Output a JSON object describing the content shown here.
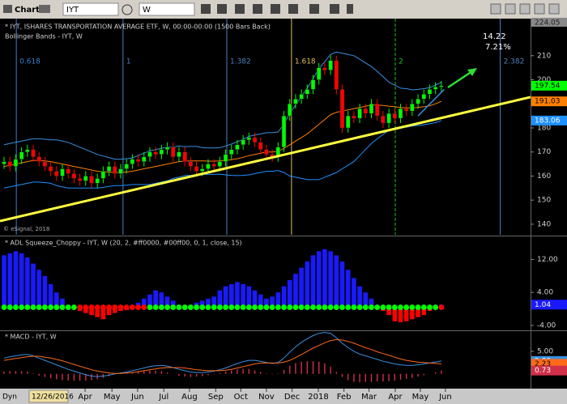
{
  "toolbar": {
    "label": "Chart",
    "symbol": "IYT",
    "interval": "W"
  },
  "status": {
    "mode": "Dyn",
    "date": "12/26/2016"
  },
  "chart_data": [
    {
      "type": "candlestick",
      "title": "* IYT, ISHARES TRANSPORTATION AVERAGE ETF, W, 00:00-00:00 (1500 Bars Back)",
      "subtitle": "Bollinger Bands - IYT, W",
      "copyright": "© eSignal, 2018",
      "annotation": {
        "change": "14.22",
        "percent": "7.21%"
      },
      "xlim": [
        -0.7,
        90.3
      ],
      "ylim": [
        135.6,
        224.05
      ],
      "yticks": [
        140,
        150,
        160,
        170,
        180,
        190,
        200,
        210
      ],
      "up_color": "#00ff00",
      "down_color": "#ff0000",
      "open": [
        165,
        166,
        164,
        167,
        170,
        171,
        168,
        166,
        164,
        162,
        160,
        163,
        161,
        159,
        158,
        160,
        157,
        159,
        162,
        164,
        161,
        163,
        165,
        167,
        166,
        168,
        170,
        169,
        171,
        172,
        168,
        170,
        166,
        164,
        162,
        163,
        165,
        164,
        166,
        169,
        171,
        173,
        175,
        176,
        174,
        171,
        169,
        168,
        172,
        185,
        190,
        192,
        194,
        196,
        200,
        205,
        204,
        208,
        196,
        180,
        185,
        184,
        188,
        186,
        190,
        185,
        182,
        186,
        184,
        188,
        187,
        190,
        192,
        194,
        196,
        197
      ],
      "high": [
        168,
        168,
        169,
        172,
        173,
        173,
        170,
        168,
        166,
        164,
        165,
        165,
        163,
        161,
        162,
        162,
        161,
        164,
        166,
        166,
        165,
        167,
        169,
        169,
        170,
        172,
        172,
        173,
        174,
        174,
        172,
        172,
        168,
        166,
        165,
        167,
        167,
        168,
        171,
        173,
        175,
        177,
        178,
        178,
        176,
        173,
        171,
        174,
        187,
        192,
        194,
        196,
        198,
        202,
        207,
        207,
        210,
        210,
        198,
        187,
        187,
        190,
        190,
        192,
        192,
        187,
        188,
        188,
        190,
        190,
        192,
        194,
        196,
        198,
        199,
        199.5
      ],
      "low": [
        163,
        162,
        162,
        165,
        168,
        166,
        164,
        162,
        160,
        158,
        158,
        159,
        157,
        156,
        156,
        155,
        155,
        157,
        160,
        159,
        159,
        161,
        163,
        164,
        164,
        166,
        167,
        167,
        169,
        166,
        166,
        164,
        162,
        160,
        160,
        161,
        162,
        162,
        164,
        167,
        169,
        171,
        173,
        172,
        169,
        167,
        166,
        166,
        170,
        183,
        188,
        190,
        192,
        194,
        198,
        202,
        202,
        194,
        178,
        178,
        182,
        182,
        184,
        184,
        183,
        180,
        180,
        182,
        182,
        185,
        185,
        188,
        190,
        192,
        194,
        195
      ],
      "close": [
        166,
        164,
        167,
        170,
        171,
        168,
        166,
        164,
        162,
        160,
        163,
        161,
        159,
        158,
        160,
        157,
        159,
        162,
        164,
        161,
        163,
        165,
        167,
        166,
        168,
        170,
        169,
        171,
        172,
        168,
        170,
        166,
        164,
        162,
        163,
        165,
        164,
        166,
        169,
        171,
        173,
        175,
        176,
        174,
        171,
        169,
        168,
        172,
        185,
        190,
        192,
        194,
        196,
        200,
        205,
        204,
        208,
        196,
        180,
        185,
        184,
        188,
        186,
        190,
        185,
        182,
        186,
        184,
        188,
        187,
        190,
        192,
        194,
        196,
        197,
        197.54
      ],
      "bands": [
        {
          "color": "#3a8fe0",
          "values": [
            173,
            173.5,
            174,
            174.5,
            175,
            175.5,
            175.5,
            175.3,
            175,
            175,
            174.5,
            174,
            173,
            172,
            171,
            170,
            169,
            168.3,
            167.7,
            167,
            167,
            167.2,
            167.5,
            168.5,
            169.5,
            170.5,
            171,
            171.5,
            172,
            172,
            172.5,
            172.2,
            172.3,
            172.3,
            171.8,
            171.7,
            171.7,
            171.8,
            172.5,
            173.3,
            174.2,
            175.3,
            176.5,
            177,
            177.5,
            178,
            178,
            178.3,
            181.5,
            186,
            189.5,
            193,
            196.5,
            200.5,
            204.5,
            207.5,
            210.5,
            211.5,
            211,
            210.5,
            210,
            208.5,
            207,
            205.5,
            203.5,
            201.3,
            199,
            197.8,
            196.5,
            196.3,
            195.8,
            196,
            196.3,
            196.7,
            197.8,
            199
          ]
        },
        {
          "color": "#ff8000",
          "values": [
            164,
            164.5,
            165,
            165.5,
            166,
            166.5,
            166.5,
            166.3,
            166,
            165.5,
            165,
            164.5,
            164,
            163.5,
            163,
            162.5,
            162,
            161.8,
            161.7,
            161.5,
            161.5,
            161.7,
            162,
            162.5,
            163,
            163.5,
            164,
            164.5,
            165,
            165.5,
            166,
            166.2,
            166.3,
            166.3,
            166.3,
            166.2,
            166.2,
            166.3,
            166.5,
            166.8,
            167.2,
            167.8,
            168.5,
            169,
            169.5,
            170,
            170,
            170.3,
            171.5,
            173,
            174.5,
            176,
            177.5,
            179.5,
            181.5,
            183.5,
            185.5,
            186.5,
            187,
            187.5,
            188,
            188.5,
            189,
            189.5,
            189.5,
            189.3,
            189,
            188.8,
            188.5,
            188.3,
            188.3,
            188.5,
            188.8,
            189.2,
            190,
            191.03
          ]
        },
        {
          "color": "#1e90ff",
          "values": [
            155,
            155.5,
            156,
            156.5,
            157,
            157.5,
            157.5,
            157.3,
            157,
            156,
            155.5,
            155,
            155,
            155,
            155,
            155,
            155,
            155.3,
            155.7,
            156,
            156,
            156.2,
            156.5,
            156.5,
            156.5,
            156.5,
            157,
            157.5,
            158,
            159,
            159.5,
            160.2,
            160.3,
            160.3,
            160.8,
            160.7,
            160.7,
            160.8,
            160.5,
            160.3,
            160.2,
            160.3,
            160.5,
            161,
            161.5,
            162,
            162,
            162.3,
            161.5,
            160,
            159.5,
            159,
            158.5,
            158.5,
            158.5,
            159.5,
            160.5,
            161.5,
            163,
            164.5,
            166,
            168.5,
            171,
            173.5,
            175.5,
            177.3,
            179,
            179.8,
            180.5,
            180.3,
            180.8,
            181,
            181.3,
            181.7,
            182.2,
            183.06
          ]
        }
      ],
      "trendlines": [
        {
          "color": "#ffff40",
          "x": [
            -0.7,
            90.3
          ],
          "y": [
            141.3,
            192.8
          ]
        },
        {
          "color": "#3a8fe0",
          "x": [
            71,
            75.5
          ],
          "y": [
            185,
            196
          ]
        }
      ],
      "fib_lines": [
        {
          "label": "0.618",
          "x": 2.1,
          "color": "#3d7fd0"
        },
        {
          "label": "1",
          "x": 20.4,
          "color": "#5080c0"
        },
        {
          "label": "1.382",
          "x": 38.2,
          "color": "#5080c0"
        },
        {
          "label": "1.618",
          "x": 49.3,
          "color": "#e0c060"
        },
        {
          "label": "2",
          "x": 67.1,
          "color": "#20c020"
        },
        {
          "label": "2.382",
          "x": 85.1,
          "color": "#5080c0"
        }
      ]
    },
    {
      "type": "bar",
      "title": "* ADL Squeeze_Choppy - IYT, W (20, 2, #ff0000, #00ff00, 0, 1, close, 15)",
      "xlim": [
        -0.7,
        90.3
      ],
      "ylim": [
        -5,
        17.4
      ],
      "yticks": [
        {
          "value": -4,
          "label": "-4.00"
        },
        {
          "value": 4,
          "label": "4.00"
        },
        {
          "value": 12,
          "label": "12.00"
        }
      ],
      "up_color": "#1a1aff",
      "down_color": "#ff0000",
      "values": [
        13,
        13.5,
        14,
        13.5,
        12.5,
        11,
        9.5,
        8,
        6,
        4,
        2.5,
        1,
        0.3,
        -0.5,
        -1,
        -1.5,
        -2,
        -2.5,
        -1.5,
        -1,
        -0.5,
        -0.3,
        0.5,
        1.5,
        2.5,
        3.5,
        4.5,
        4,
        3,
        2,
        1,
        0.5,
        1,
        1.5,
        2,
        2.5,
        3,
        4.5,
        5.5,
        6,
        6.5,
        6,
        5.5,
        4.5,
        3.5,
        2.5,
        3,
        4,
        5.5,
        7,
        8.5,
        10,
        11.5,
        13,
        14,
        14.5,
        14,
        13,
        11.5,
        9.5,
        7.5,
        5.5,
        4,
        2.5,
        1,
        -0.5,
        -1.5,
        -3,
        -3.2,
        -3,
        -2.5,
        -2,
        -1.5,
        -0.5,
        0.5,
        1.04
      ],
      "dot_colors": [
        "#00ff00",
        "#ff0000"
      ],
      "dot_states": [
        0,
        0,
        0,
        0,
        0,
        0,
        0,
        0,
        0,
        0,
        0,
        0,
        0,
        1,
        1,
        1,
        1,
        1,
        1,
        1,
        1,
        1,
        1,
        1,
        1,
        0,
        0,
        0,
        0,
        0,
        0,
        0,
        0,
        0,
        0,
        0,
        0,
        0,
        0,
        0,
        0,
        0,
        0,
        0,
        0,
        0,
        0,
        0,
        0,
        0,
        0,
        0,
        0,
        0,
        0,
        0,
        0,
        0,
        0,
        0,
        0,
        0,
        0,
        0,
        0,
        0,
        0,
        0,
        0,
        0,
        0,
        0,
        0,
        0,
        0,
        1
      ]
    },
    {
      "type": "line",
      "title": "* MACD - IYT, W",
      "xlim": [
        -0.7,
        90.3
      ],
      "ylim": [
        -3.1,
        9.3
      ],
      "yticks": [
        {
          "value": 5,
          "label": "5.00"
        }
      ],
      "lines": [
        {
          "color": "#3a8fe0",
          "values": [
            3.5,
            3.8,
            4,
            4.2,
            4.3,
            4,
            3.5,
            3,
            2.5,
            2,
            1.5,
            1,
            0.6,
            0.2,
            -0.2,
            -0.5,
            -0.6,
            -0.5,
            -0.3,
            0,
            0.2,
            0.4,
            0.7,
            1,
            1.3,
            1.6,
            1.8,
            1.9,
            1.7,
            1.4,
            1,
            0.7,
            0.4,
            0.3,
            0.3,
            0.4,
            0.6,
            0.9,
            1.3,
            1.8,
            2.3,
            2.7,
            3,
            3,
            2.8,
            2.5,
            2.3,
            2.5,
            3.5,
            4.8,
            6,
            7,
            7.8,
            8.5,
            9,
            9.2,
            9,
            8,
            6.8,
            5.8,
            5,
            4.4,
            4,
            3.6,
            3.2,
            2.8,
            2.5,
            2.2,
            2,
            1.9,
            1.9,
            2,
            2.2,
            2.4,
            2.6,
            2.86
          ]
        },
        {
          "color": "#ff6a1a",
          "values": [
            3,
            3.2,
            3.4,
            3.6,
            3.8,
            3.9,
            3.9,
            3.7,
            3.5,
            3.2,
            2.9,
            2.5,
            2.1,
            1.7,
            1.3,
            0.9,
            0.6,
            0.4,
            0.2,
            0.1,
            0.1,
            0.2,
            0.3,
            0.5,
            0.7,
            0.9,
            1.1,
            1.3,
            1.4,
            1.4,
            1.4,
            1.3,
            1.1,
            0.9,
            0.8,
            0.7,
            0.7,
            0.7,
            0.8,
            1,
            1.3,
            1.6,
            1.9,
            2.2,
            2.4,
            2.4,
            2.4,
            2.4,
            2.6,
            3,
            3.6,
            4.3,
            5,
            5.7,
            6.3,
            6.9,
            7.4,
            7.6,
            7.5,
            7.2,
            6.8,
            6.3,
            5.8,
            5.4,
            4.9,
            4.5,
            4.1,
            3.7,
            3.3,
            3,
            2.8,
            2.6,
            2.5,
            2.4,
            2.3,
            2.23
          ]
        }
      ],
      "histogram": {
        "color": "#d0304a",
        "values": [
          0.5,
          0.6,
          0.6,
          0.6,
          0.5,
          0.1,
          -0.4,
          -0.7,
          -1,
          -1.2,
          -1.4,
          -1.5,
          -1.5,
          -1.5,
          -1.5,
          -1.4,
          -1.2,
          -0.9,
          -0.5,
          -0.1,
          0.1,
          0.2,
          0.4,
          0.5,
          0.6,
          0.7,
          0.7,
          0.6,
          0.3,
          0,
          -0.4,
          -0.6,
          -0.7,
          -0.6,
          -0.5,
          -0.3,
          -0.1,
          0.2,
          0.5,
          0.8,
          1,
          1.1,
          1.1,
          0.8,
          0.4,
          0.1,
          -0.1,
          0.1,
          0.9,
          1.8,
          2.4,
          2.7,
          2.8,
          2.8,
          2.7,
          2.3,
          1.6,
          0.4,
          -0.7,
          -1.4,
          -1.8,
          -1.9,
          -1.8,
          -1.8,
          -1.7,
          -1.7,
          -1.6,
          -1.5,
          -1.3,
          -1.1,
          -0.9,
          -0.6,
          -0.3,
          0,
          0.3,
          0.73
        ]
      },
      "xticks": [
        {
          "value": 13.9,
          "label": "Apr"
        },
        {
          "value": 18.5,
          "label": "May"
        },
        {
          "value": 22.9,
          "label": "Jun"
        },
        {
          "value": 27.4,
          "label": "Jul"
        },
        {
          "value": 31.8,
          "label": "Aug"
        },
        {
          "value": 36.3,
          "label": "Sep"
        },
        {
          "value": 40.6,
          "label": "Oct"
        },
        {
          "value": 45,
          "label": "Nov"
        },
        {
          "value": 49.4,
          "label": "Dec"
        },
        {
          "value": 53.9,
          "label": "2018"
        },
        {
          "value": 58.3,
          "label": "Feb"
        },
        {
          "value": 62.6,
          "label": "Mar"
        },
        {
          "value": 67.1,
          "label": "Apr"
        },
        {
          "value": 71.4,
          "label": "May"
        },
        {
          "value": 75.7,
          "label": "Jun"
        }
      ]
    }
  ]
}
